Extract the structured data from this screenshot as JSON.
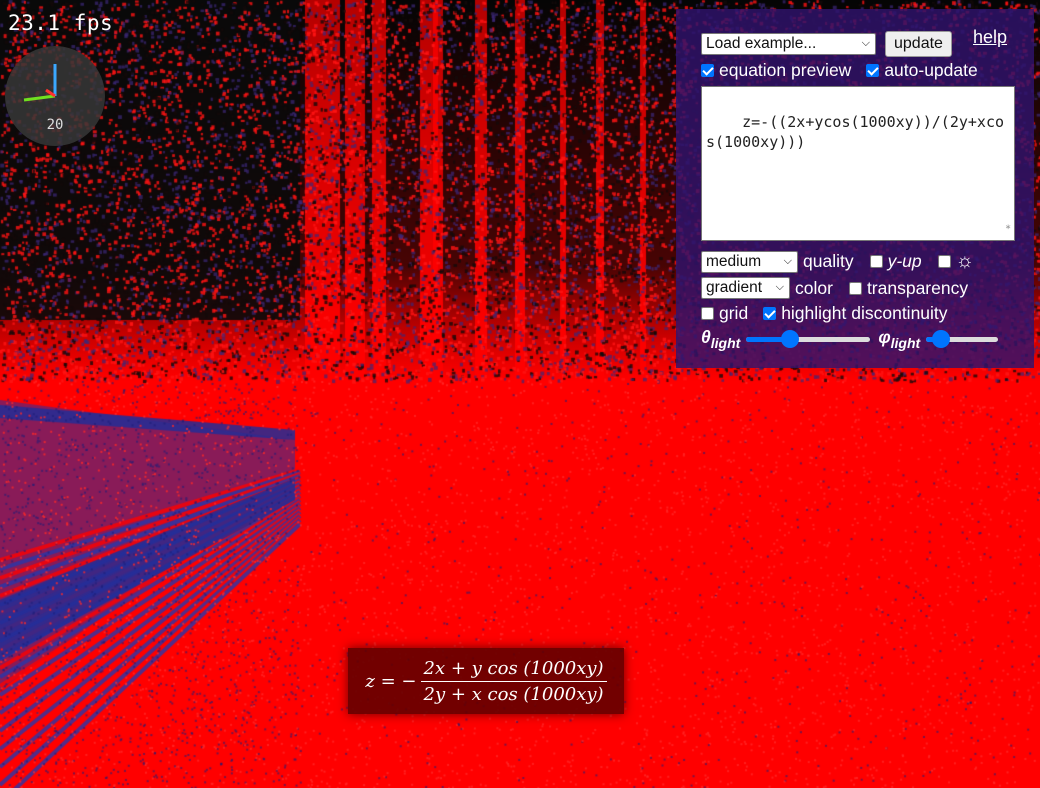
{
  "fps": "23.1 fps",
  "gizmo": {
    "label": "20",
    "axis_colors": {
      "x": "#ff3030",
      "y": "#3ba8ff",
      "z": "#70e020"
    }
  },
  "panel": {
    "example_select": "Load example...",
    "update_button": "update",
    "help_link": "help",
    "equation_preview": {
      "label": "equation preview",
      "checked": true
    },
    "auto_update": {
      "label": "auto-update",
      "checked": true
    },
    "equation_text": "z=-((2x+ycos(1000xy))/(2y+xcos(1000xy)))",
    "quality_select": "medium",
    "quality_label": "quality",
    "y_up": {
      "label": "y-up",
      "checked": false
    },
    "light_toggle": {
      "icon": "sun-icon",
      "glyph": "☼",
      "checked": false
    },
    "color_select": "gradient",
    "color_label": "color",
    "transparency": {
      "label": "transparency",
      "checked": false
    },
    "grid": {
      "label": "grid",
      "checked": false
    },
    "highlight_discontinuity": {
      "label": "highlight discontinuity",
      "checked": true
    },
    "theta_light": {
      "symbol": "θ",
      "sub": "light",
      "value": 0.35
    },
    "phi_light": {
      "symbol": "φ",
      "sub": "light",
      "value": 0.2
    }
  },
  "preview": {
    "lhs": "z = −",
    "numerator": "2x + y cos (1000xy)",
    "denominator": "2y + x cos (1000xy)"
  },
  "colors": {
    "plot_red": "#ff0000",
    "plot_blue": "#2a3aa0",
    "panel_bg": "#30146e"
  }
}
